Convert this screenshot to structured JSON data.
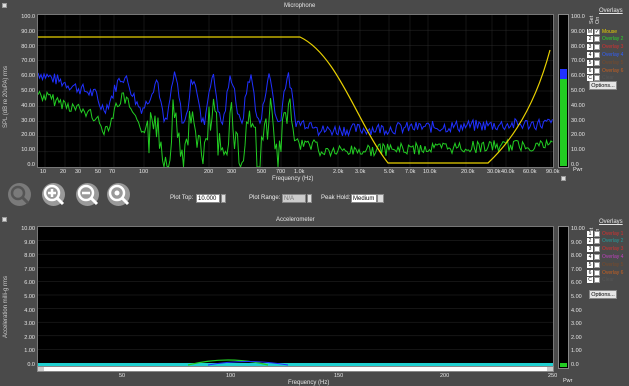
{
  "top": {
    "title": "Microphone",
    "ylabel": "SPL (dB re 20uPA) rms",
    "xlabel": "Frequency (Hz)",
    "yticks": [
      "100.0",
      "90.00",
      "80.00",
      "70.00",
      "60.00",
      "50.00",
      "40.00",
      "30.00",
      "20.00",
      "10.00",
      "0.0"
    ],
    "xticks": [
      "10",
      "20",
      "30",
      "50",
      "70",
      "100",
      "200",
      "300",
      "500",
      "700",
      "1.0k",
      "2.0k",
      "3.0k",
      "5.0k",
      "7.0k",
      "10.0k",
      "20.0k",
      "30.0k",
      "40.0k",
      "60.0k",
      "90.0k"
    ],
    "meter_ticks": [
      "100.0",
      "90.00",
      "80.00",
      "70.00",
      "60.00",
      "50.00",
      "40.00",
      "30.00",
      "20.00",
      "10.00",
      "0.0"
    ],
    "meter_label": "Pwr",
    "overlays_title": "Overlays",
    "set_label": "Set",
    "on_label": "On",
    "overlays": [
      {
        "num": "M",
        "label": "Mouse",
        "color": "#e8d000",
        "checked": "✓"
      },
      {
        "num": "2",
        "label": "Overlay 2",
        "color": "#2bd62b",
        "checked": ""
      },
      {
        "num": "3",
        "label": "Overlay 3",
        "color": "#d83030",
        "checked": ""
      },
      {
        "num": "4",
        "label": "Overlay 4",
        "color": "#3060ff",
        "checked": ""
      },
      {
        "num": "5",
        "label": "Overlay 5",
        "color": "#7a4a2a",
        "checked": ""
      },
      {
        "num": "6",
        "label": "Overlay 6",
        "color": "#c86020",
        "checked": ""
      },
      {
        "num": "C",
        "label": "Clear",
        "color": "#555555",
        "checked": ""
      }
    ],
    "options_label": "Options..."
  },
  "controls": {
    "plot_top_label": "Plot Top:",
    "plot_top_value": "10.000",
    "plot_range_label": "Plot Range:",
    "plot_range_value": "N/A",
    "peak_hold_label": "Peak Hold:",
    "peak_hold_value": "Medium",
    "icons": [
      "search-icon",
      "zoom-in-icon",
      "zoom-out-icon",
      "zoom-reset-icon"
    ]
  },
  "bottom": {
    "title": "Accelerometer",
    "ylabel": "Acceleration milli-g rms",
    "xlabel": "Frequency (Hz)",
    "yticks": [
      "10.00",
      "9.00",
      "8.00",
      "7.00",
      "6.00",
      "5.00",
      "4.00",
      "3.00",
      "2.00",
      "1.00",
      "0.0"
    ],
    "xticks": [
      "50",
      "100",
      "150",
      "200",
      "250"
    ],
    "meter_ticks": [
      "10.00",
      "9.00",
      "8.00",
      "7.00",
      "6.00",
      "5.00",
      "4.00",
      "3.00",
      "2.00",
      "1.00",
      "0.0"
    ],
    "meter_label": "Pwr",
    "overlays_title": "Overlays",
    "set_label": "Set",
    "on_label": "On",
    "overlays": [
      {
        "num": "1",
        "label": "Overlay 1",
        "color": "#d83030",
        "checked": ""
      },
      {
        "num": "2",
        "label": "Overlay 2",
        "color": "#20a0a0",
        "checked": ""
      },
      {
        "num": "3",
        "label": "Overlay 3",
        "color": "#d83030",
        "checked": ""
      },
      {
        "num": "4",
        "label": "Overlay 4",
        "color": "#c040c0",
        "checked": ""
      },
      {
        "num": "5",
        "label": "Overlay 5",
        "color": "#7a4a2a",
        "checked": ""
      },
      {
        "num": "6",
        "label": "Overlay 6",
        "color": "#c86020",
        "checked": ""
      },
      {
        "num": "C",
        "label": "Clear",
        "color": "#555555",
        "checked": ""
      }
    ],
    "options_label": "Options..."
  },
  "colors": {
    "mouse": "#e8d000",
    "live": "#22cc22",
    "peak": "#2030ff"
  }
}
